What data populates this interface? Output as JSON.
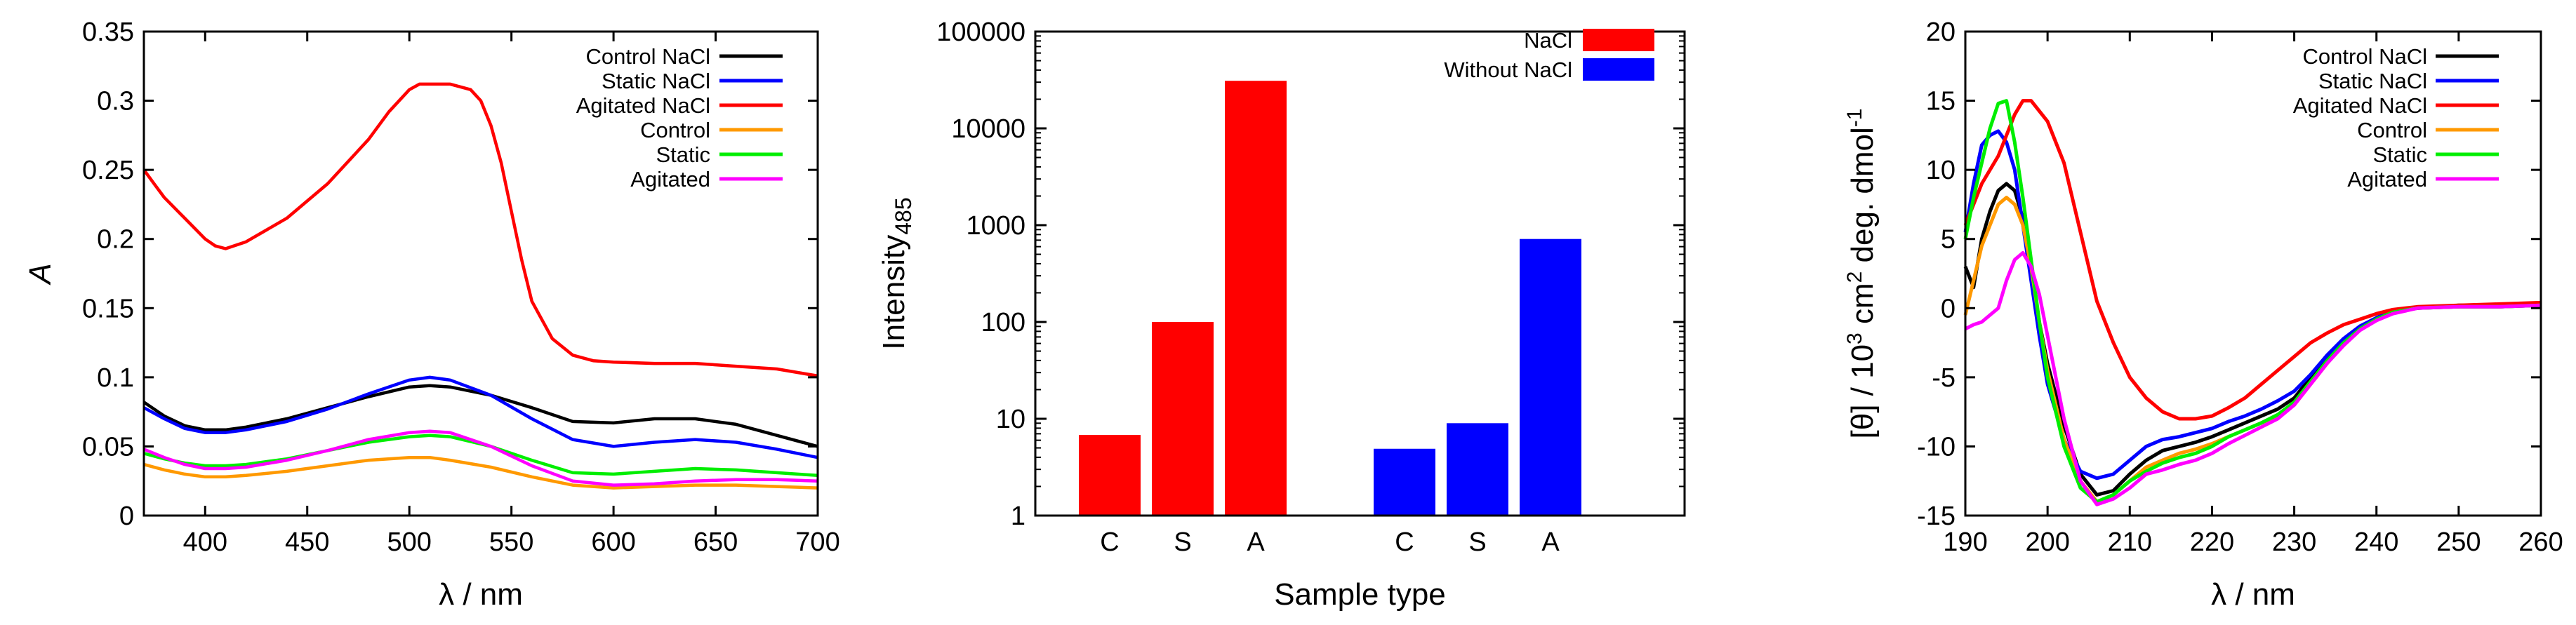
{
  "chart_data": [
    {
      "type": "line",
      "title": "",
      "xlabel": "λ / nm",
      "ylabel": "A",
      "xlim": [
        370,
        700
      ],
      "ylim": [
        0,
        0.35
      ],
      "xticks": [
        400,
        450,
        500,
        550,
        600,
        650,
        700
      ],
      "yticks": [
        0,
        0.05,
        0.1,
        0.15,
        0.2,
        0.25,
        0.3,
        0.35
      ],
      "legend_position": "top-right",
      "series": [
        {
          "name": "Control NaCl",
          "color": "#000000",
          "x": [
            370,
            380,
            390,
            400,
            410,
            420,
            440,
            460,
            480,
            500,
            510,
            520,
            540,
            560,
            580,
            600,
            620,
            640,
            660,
            680,
            700
          ],
          "y": [
            0.082,
            0.072,
            0.065,
            0.062,
            0.062,
            0.064,
            0.07,
            0.078,
            0.086,
            0.093,
            0.094,
            0.093,
            0.087,
            0.078,
            0.068,
            0.067,
            0.07,
            0.07,
            0.066,
            0.058,
            0.05
          ]
        },
        {
          "name": "Static NaCl",
          "color": "#0000ff",
          "x": [
            370,
            380,
            390,
            400,
            410,
            420,
            440,
            460,
            480,
            500,
            510,
            520,
            540,
            560,
            580,
            600,
            620,
            640,
            660,
            680,
            700
          ],
          "y": [
            0.078,
            0.07,
            0.063,
            0.06,
            0.06,
            0.062,
            0.068,
            0.077,
            0.088,
            0.098,
            0.1,
            0.098,
            0.087,
            0.07,
            0.055,
            0.05,
            0.053,
            0.055,
            0.053,
            0.048,
            0.042
          ]
        },
        {
          "name": "Agitated NaCl",
          "color": "#ff0000",
          "x": [
            370,
            375,
            380,
            390,
            400,
            405,
            410,
            420,
            440,
            460,
            480,
            490,
            500,
            505,
            510,
            520,
            530,
            535,
            540,
            545,
            550,
            555,
            560,
            570,
            580,
            590,
            600,
            620,
            640,
            660,
            680,
            700
          ],
          "y": [
            0.25,
            0.24,
            0.23,
            0.215,
            0.2,
            0.195,
            0.193,
            0.198,
            0.215,
            0.24,
            0.272,
            0.292,
            0.308,
            0.312,
            0.312,
            0.312,
            0.308,
            0.3,
            0.282,
            0.255,
            0.22,
            0.185,
            0.155,
            0.128,
            0.116,
            0.112,
            0.111,
            0.11,
            0.11,
            0.108,
            0.106,
            0.101
          ]
        },
        {
          "name": "Control",
          "color": "#ff9900",
          "x": [
            370,
            380,
            390,
            400,
            410,
            420,
            440,
            460,
            480,
            500,
            510,
            520,
            540,
            560,
            580,
            600,
            620,
            640,
            660,
            680,
            700
          ],
          "y": [
            0.037,
            0.033,
            0.03,
            0.028,
            0.028,
            0.029,
            0.032,
            0.036,
            0.04,
            0.042,
            0.042,
            0.04,
            0.035,
            0.028,
            0.022,
            0.02,
            0.021,
            0.022,
            0.022,
            0.021,
            0.02
          ]
        },
        {
          "name": "Static",
          "color": "#00ee00",
          "x": [
            370,
            380,
            390,
            400,
            410,
            420,
            440,
            460,
            480,
            500,
            510,
            520,
            540,
            560,
            580,
            600,
            620,
            640,
            660,
            680,
            700
          ],
          "y": [
            0.045,
            0.041,
            0.038,
            0.036,
            0.036,
            0.037,
            0.041,
            0.047,
            0.053,
            0.057,
            0.058,
            0.057,
            0.05,
            0.04,
            0.031,
            0.03,
            0.032,
            0.034,
            0.033,
            0.031,
            0.029
          ]
        },
        {
          "name": "Agitated",
          "color": "#ff00ff",
          "x": [
            370,
            380,
            390,
            400,
            410,
            420,
            440,
            460,
            480,
            500,
            510,
            520,
            540,
            560,
            580,
            600,
            620,
            640,
            660,
            680,
            700
          ],
          "y": [
            0.048,
            0.042,
            0.037,
            0.034,
            0.034,
            0.035,
            0.04,
            0.047,
            0.055,
            0.06,
            0.061,
            0.06,
            0.05,
            0.036,
            0.025,
            0.022,
            0.023,
            0.025,
            0.026,
            0.026,
            0.025
          ]
        }
      ]
    },
    {
      "type": "bar",
      "title": "",
      "xlabel": "Sample type",
      "ylabel": "Intensity",
      "ylabel_subscript": "485",
      "yscale": "log",
      "ylim": [
        1,
        100000
      ],
      "yticks": [
        1,
        10,
        100,
        1000,
        10000,
        100000
      ],
      "legend_position": "top-right",
      "series": [
        {
          "name": "NaCl",
          "color": "#ff0000",
          "categories": [
            "C",
            "S",
            "A"
          ],
          "values": [
            6.8,
            100,
            31000
          ]
        },
        {
          "name": "Without NaCl",
          "color": "#0000ff",
          "categories": [
            "C",
            "S",
            "A"
          ],
          "values": [
            4.9,
            9,
            720
          ]
        }
      ]
    },
    {
      "type": "line",
      "title": "",
      "xlabel": "λ / nm",
      "ylabel": "[θ] / 10³ cm² deg. dmol⁻¹",
      "ylabel_parts": [
        "[θ] / 10",
        "3",
        " cm",
        "2",
        " deg. dmol",
        "-1"
      ],
      "xlim": [
        190,
        260
      ],
      "ylim": [
        -15,
        20
      ],
      "xticks": [
        190,
        200,
        210,
        220,
        230,
        240,
        250,
        260
      ],
      "yticks": [
        -15,
        -10,
        -5,
        0,
        5,
        10,
        15,
        20
      ],
      "legend_position": "top-right",
      "series": [
        {
          "name": "Control NaCl",
          "color": "#000000",
          "x": [
            190,
            191,
            192,
            193,
            194,
            195,
            196,
            197,
            198,
            199,
            200,
            202,
            204,
            206,
            208,
            210,
            212,
            214,
            216,
            218,
            220,
            222,
            224,
            226,
            228,
            230,
            232,
            234,
            236,
            238,
            240,
            242,
            245,
            250,
            255,
            260
          ],
          "y": [
            3,
            1.5,
            5,
            7,
            8.5,
            9,
            8.5,
            6.5,
            3,
            -1,
            -4,
            -8.5,
            -12,
            -13.5,
            -13.2,
            -12,
            -11,
            -10.3,
            -10,
            -9.7,
            -9.3,
            -8.8,
            -8.3,
            -7.8,
            -7.3,
            -6.5,
            -5,
            -3.5,
            -2.3,
            -1.4,
            -0.7,
            -0.2,
            0,
            0.2,
            0.2,
            0.3
          ]
        },
        {
          "name": "Static NaCl",
          "color": "#0000ff",
          "x": [
            190,
            191,
            192,
            193,
            194,
            195,
            196,
            197,
            198,
            199,
            200,
            202,
            204,
            206,
            208,
            210,
            212,
            214,
            216,
            218,
            220,
            222,
            224,
            226,
            228,
            230,
            232,
            234,
            236,
            238,
            240,
            242,
            245,
            250,
            255,
            260
          ],
          "y": [
            5.5,
            9,
            11.8,
            12.5,
            12.8,
            12,
            10,
            6,
            2,
            -2,
            -5.5,
            -9.5,
            -11.8,
            -12.3,
            -12,
            -11,
            -10,
            -9.5,
            -9.3,
            -9,
            -8.7,
            -8.2,
            -7.8,
            -7.3,
            -6.7,
            -6,
            -4.8,
            -3.4,
            -2.2,
            -1.3,
            -0.7,
            -0.2,
            0,
            0.1,
            0.1,
            0.2
          ]
        },
        {
          "name": "Agitated NaCl",
          "color": "#ff0000",
          "x": [
            190,
            192,
            194,
            195,
            196,
            197,
            198,
            200,
            202,
            204,
            206,
            208,
            210,
            212,
            214,
            216,
            218,
            220,
            222,
            224,
            226,
            228,
            230,
            232,
            234,
            236,
            238,
            240,
            242,
            245,
            250,
            255,
            260
          ],
          "y": [
            6,
            9,
            11,
            12.5,
            14,
            15,
            15,
            13.5,
            10.5,
            5.5,
            0.5,
            -2.5,
            -5,
            -6.5,
            -7.5,
            -8,
            -8,
            -7.8,
            -7.2,
            -6.5,
            -5.5,
            -4.5,
            -3.5,
            -2.5,
            -1.8,
            -1.2,
            -0.8,
            -0.4,
            -0.1,
            0.1,
            0.2,
            0.3,
            0.4
          ]
        },
        {
          "name": "Control",
          "color": "#ff9900",
          "x": [
            190,
            191,
            192,
            193,
            194,
            195,
            196,
            197,
            198,
            199,
            200,
            202,
            204,
            206,
            208,
            210,
            212,
            214,
            216,
            218,
            220,
            222,
            224,
            226,
            228,
            230,
            232,
            234,
            236,
            238,
            240,
            242,
            245,
            250,
            255,
            260
          ],
          "y": [
            -0.5,
            2,
            4.5,
            6,
            7.5,
            8,
            7.5,
            6,
            3,
            -1,
            -4.5,
            -9.5,
            -12.5,
            -14,
            -13.5,
            -12.5,
            -11.5,
            -11,
            -10.5,
            -10.2,
            -9.8,
            -9.3,
            -8.8,
            -8.3,
            -7.8,
            -7,
            -5.5,
            -4,
            -2.6,
            -1.5,
            -0.8,
            -0.3,
            0,
            0.1,
            0.1,
            0.2
          ]
        },
        {
          "name": "Static",
          "color": "#00ee00",
          "x": [
            190,
            191,
            192,
            193,
            194,
            195,
            196,
            197,
            198,
            199,
            200,
            202,
            204,
            206,
            208,
            210,
            212,
            214,
            216,
            218,
            220,
            222,
            224,
            226,
            228,
            230,
            232,
            234,
            236,
            238,
            240,
            242,
            245,
            250,
            255,
            260
          ],
          "y": [
            5,
            8,
            10.5,
            13,
            14.8,
            15,
            12,
            8,
            3.5,
            -1,
            -5,
            -10,
            -13,
            -14,
            -13.5,
            -12.5,
            -11.8,
            -11.2,
            -10.8,
            -10.5,
            -10,
            -9.3,
            -8.8,
            -8.3,
            -7.7,
            -6.8,
            -5.3,
            -3.8,
            -2.5,
            -1.5,
            -0.8,
            -0.3,
            0,
            0.1,
            0.1,
            0.2
          ]
        },
        {
          "name": "Agitated",
          "color": "#ff00ff",
          "x": [
            190,
            191,
            192,
            193,
            194,
            195,
            196,
            197,
            198,
            199,
            200,
            202,
            204,
            206,
            208,
            210,
            212,
            214,
            216,
            218,
            220,
            222,
            224,
            226,
            228,
            230,
            232,
            234,
            236,
            238,
            240,
            242,
            245,
            250,
            255,
            260
          ],
          "y": [
            -1.5,
            -1.2,
            -1,
            -0.5,
            0,
            2,
            3.5,
            4,
            3,
            1,
            -2,
            -8,
            -12.5,
            -14.2,
            -13.8,
            -13,
            -12,
            -11.7,
            -11.3,
            -11,
            -10.5,
            -9.8,
            -9.2,
            -8.6,
            -8,
            -7,
            -5.5,
            -4,
            -2.7,
            -1.6,
            -0.9,
            -0.4,
            0,
            0.1,
            0.1,
            0.2
          ]
        }
      ]
    }
  ]
}
